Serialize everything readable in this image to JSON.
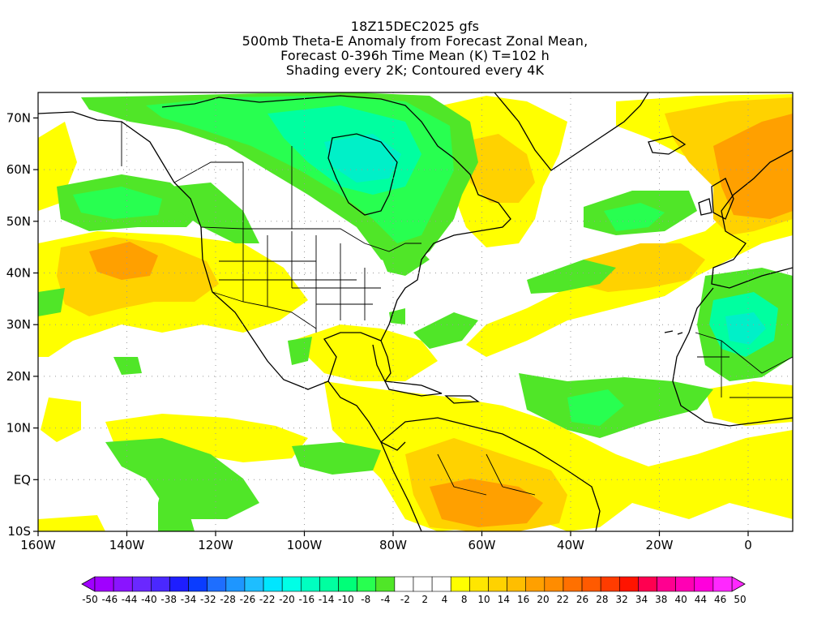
{
  "title": {
    "line1": "18Z15DEC2025 gfs",
    "line2": "500mb Theta-E Anomaly from Forecast Zonal Mean,",
    "line3": "Forecast 0-396h Time Mean (K) T=102 h",
    "line4": "Shading every 2K; Contoured every 4K"
  },
  "axes": {
    "x_ticks": [
      "160W",
      "140W",
      "120W",
      "100W",
      "80W",
      "60W",
      "40W",
      "20W",
      "0"
    ],
    "y_ticks": [
      "70N",
      "60N",
      "50N",
      "40N",
      "30N",
      "20N",
      "10N",
      "EQ",
      "10S"
    ],
    "grid": "dotted"
  },
  "colorbar": {
    "labels": [
      "-50",
      "-46",
      "-44",
      "-40",
      "-38",
      "-34",
      "-32",
      "-28",
      "-26",
      "-22",
      "-20",
      "-16",
      "-14",
      "-10",
      "-8",
      "-4",
      "-2",
      "2",
      "4",
      "8",
      "10",
      "14",
      "16",
      "20",
      "22",
      "26",
      "28",
      "32",
      "34",
      "38",
      "40",
      "44",
      "46",
      "50"
    ],
    "colors": [
      "#a000ff",
      "#8a14ff",
      "#6a28ff",
      "#4a28ff",
      "#1e1eff",
      "#0a3cff",
      "#1e6eff",
      "#1e96ff",
      "#1ebeff",
      "#00e6ff",
      "#00ffe6",
      "#00ffc0",
      "#00ffa0",
      "#00ff78",
      "#28ff50",
      "#50e628",
      "#ffffff",
      "#ffffff",
      "#ffffff",
      "#ffff00",
      "#ffe600",
      "#ffd200",
      "#ffbe00",
      "#ffa000",
      "#ff8c00",
      "#ff7000",
      "#ff5a00",
      "#ff3c00",
      "#ff1400",
      "#ff0050",
      "#ff0090",
      "#ff00b4",
      "#ff00dc",
      "#ff28ff"
    ]
  },
  "colors": {
    "anomaly_pos_weak": "#ffff00",
    "anomaly_pos_med": "#ffd200",
    "anomaly_pos_strong": "#ffa000",
    "anomaly_pos_max": "#ff8c00",
    "anomaly_neg_weak": "#50e628",
    "anomaly_neg_med": "#28ff50",
    "anomaly_neg_strong": "#00ffa0",
    "anomaly_neg_max": "#00e6c8"
  }
}
